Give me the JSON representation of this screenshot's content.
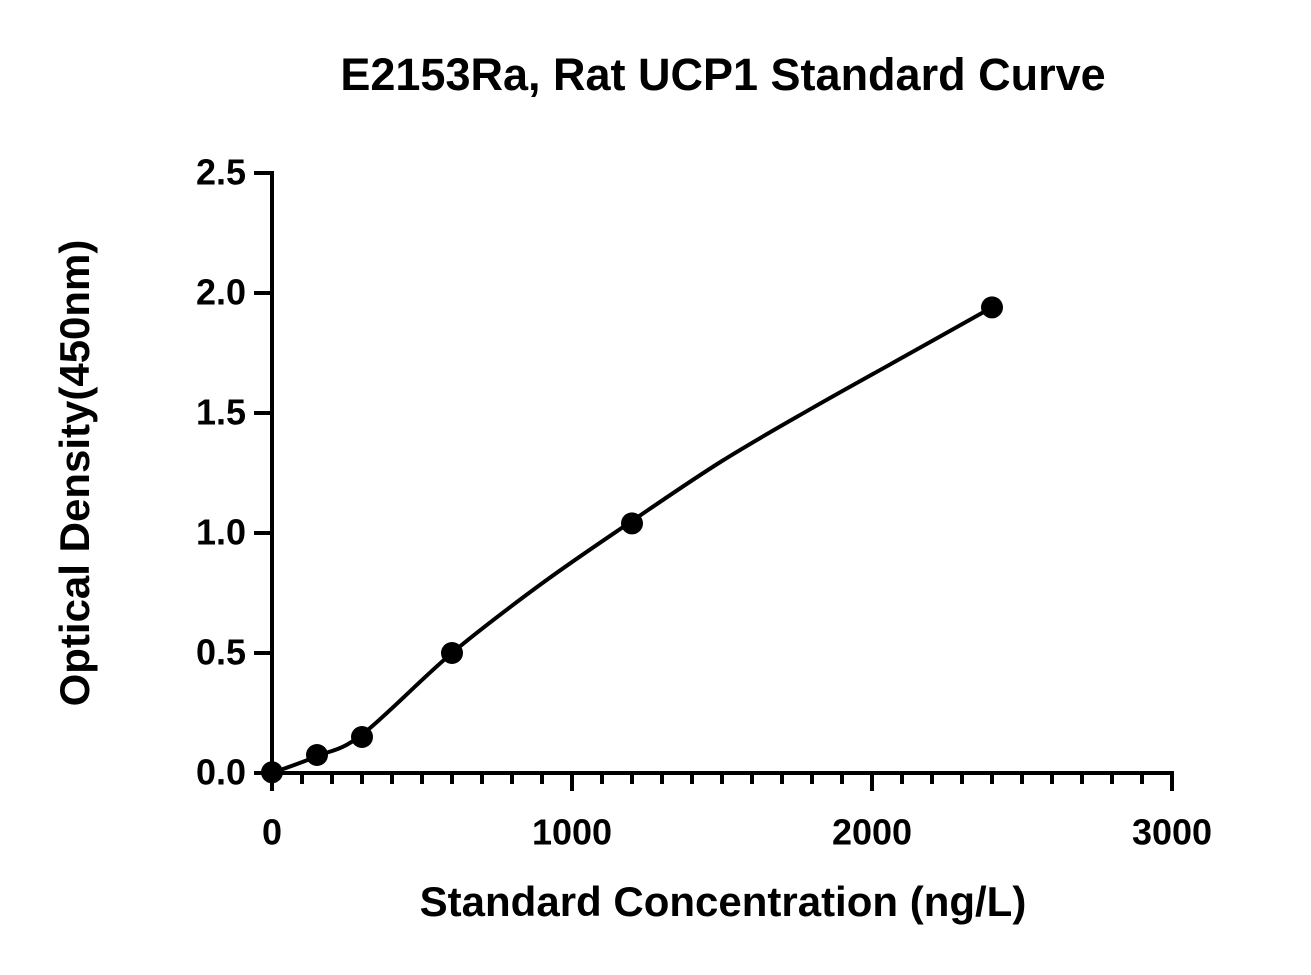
{
  "chart_data": {
    "type": "scatter",
    "title": "E2153Ra, Rat UCP1 Standard Curve",
    "x_label": "Standard Concentration (ng/L)",
    "y_label": "Optical Density(450nm)",
    "x": [
      0,
      150,
      300,
      600,
      1200,
      2400
    ],
    "values": [
      0.003,
      0.075,
      0.15,
      0.5,
      1.04,
      1.94
    ],
    "color": "#000000",
    "fit": {
      "x": [
        0,
        150,
        300,
        600,
        900,
        1200,
        1500,
        1800,
        2100,
        2400
      ],
      "values": [
        0,
        0.07,
        0.16,
        0.5,
        0.79,
        1.05,
        1.3,
        1.52,
        1.73,
        1.94
      ]
    },
    "xlim": [
      0,
      3000
    ],
    "xticks": [
      0,
      1000,
      2000,
      3000
    ],
    "xminorticks": [
      100,
      200,
      300,
      400,
      500,
      600,
      700,
      800,
      900,
      1100,
      1200,
      1300,
      1400,
      1500,
      1600,
      1700,
      1800,
      1900,
      2100,
      2200,
      2300,
      2400,
      2500,
      2600,
      2700,
      2800,
      2900
    ],
    "ylim": [
      0,
      2.5
    ],
    "yticks": [
      {
        "value": 0,
        "label": "0.0"
      },
      {
        "value": 0.5,
        "label": "0.5"
      },
      {
        "value": 1,
        "label": "1.0"
      },
      {
        "value": 1.5,
        "label": "1.5"
      },
      {
        "value": 2,
        "label": "2.0"
      },
      {
        "value": 2.5,
        "label": "2.5"
      }
    ]
  }
}
